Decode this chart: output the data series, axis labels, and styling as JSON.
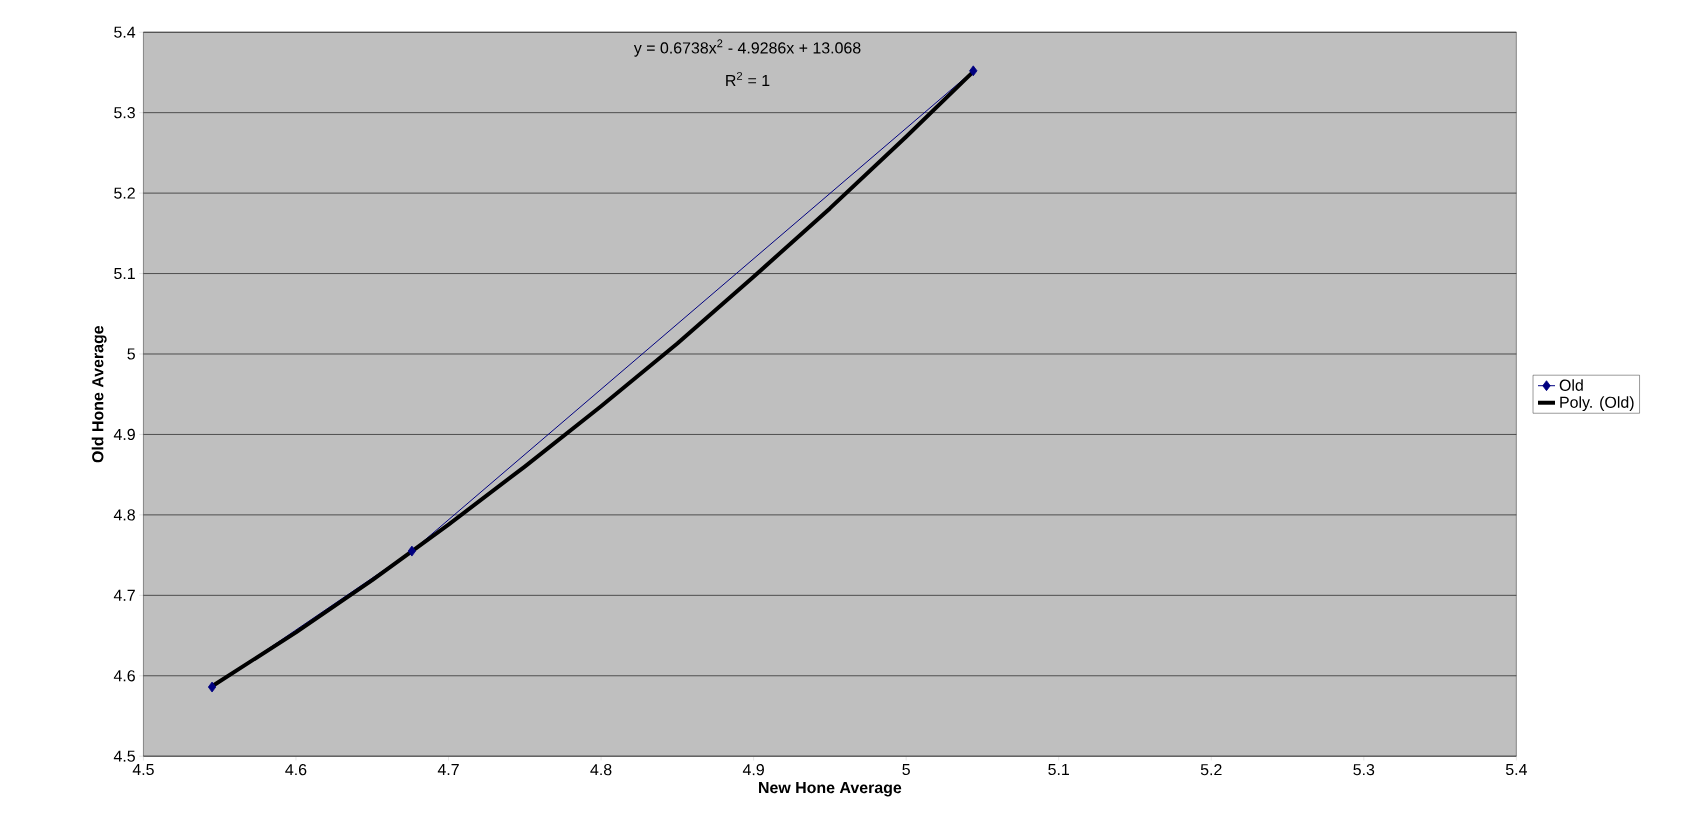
{
  "chart_data": {
    "type": "line",
    "xlabel": "New Hone Average",
    "ylabel": "Old Hone Average",
    "xlim": [
      4.5,
      5.4
    ],
    "xticks": [
      4.5,
      4.6,
      4.7,
      4.8,
      4.9,
      5,
      5.1,
      5.2,
      5.3,
      5.4
    ],
    "ylim": [
      4.5,
      5.4
    ],
    "yticks": [
      4.5,
      4.6,
      4.7,
      4.8,
      4.9,
      5,
      5.1,
      5.2,
      5.3,
      5.4
    ],
    "grid": "y",
    "legend": "right",
    "series": [
      {
        "name": "Old",
        "color": "#000080",
        "marker": "diamond",
        "x": [
          4.545,
          4.676,
          5.044
        ],
        "values": [
          4.586,
          4.755,
          5.352
        ]
      },
      {
        "name": "Poly. (Old)",
        "color": "#000000",
        "marker": "none",
        "x": [
          4.545,
          4.6,
          4.65,
          4.7,
          4.75,
          4.8,
          4.85,
          4.9,
          4.95,
          5.0,
          5.044
        ],
        "values": [
          4.587,
          4.654,
          4.719,
          4.788,
          4.86,
          4.935,
          5.013,
          5.096,
          5.181,
          5.27,
          5.351
        ]
      }
    ],
    "annotations": [
      "y = 0.6738x$^{2}$ - 4.9286x + 13.068",
      "R$^{2}$ = 1"
    ]
  }
}
